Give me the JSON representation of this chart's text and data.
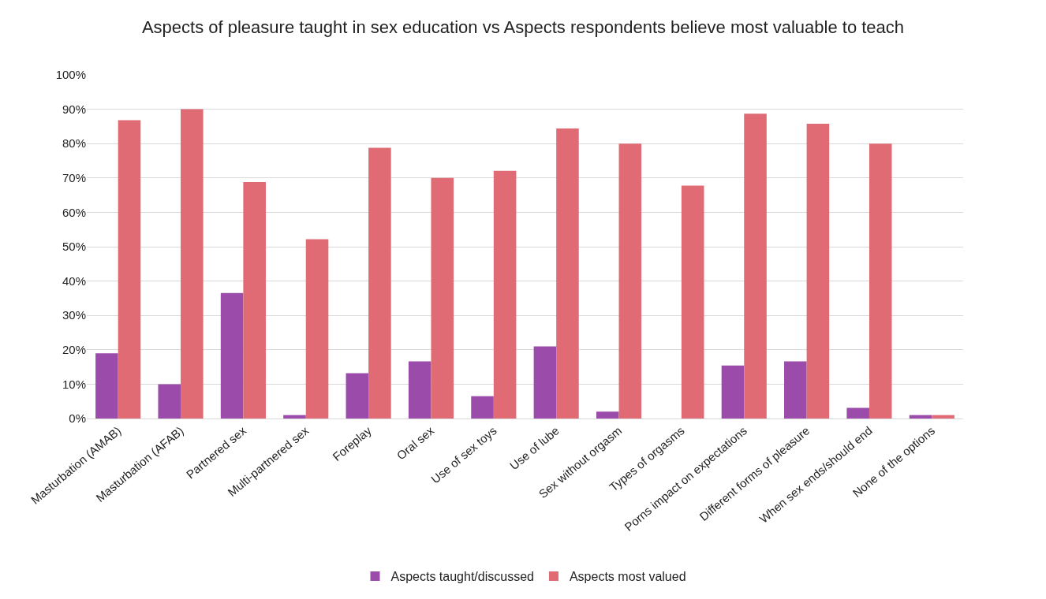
{
  "chart_data": {
    "type": "bar",
    "title": "Aspects of pleasure taught in sex education vs Aspects respondents believe most valuable to teach",
    "categories": [
      "Masturbation (AMAB)",
      "Masturbation (AFAB)",
      "Partnered sex",
      "Multi-partnered sex",
      "Foreplay",
      "Oral sex",
      "Use of sex toys",
      "Use of lube",
      "Sex without orgasm",
      "Types of orgasms",
      "Porns impact on expectations",
      "Different forms of pleasure",
      "When sex ends/should end",
      "None of the options"
    ],
    "series": [
      {
        "name": "Aspects taught/discussed",
        "color": "#9b4ba9",
        "values": [
          19,
          10,
          36.5,
          1,
          13.2,
          16.6,
          6.5,
          21,
          2,
          0,
          15.4,
          16.6,
          3.1,
          1
        ]
      },
      {
        "name": "Aspects most valued",
        "color": "#e06b74",
        "values": [
          86.8,
          90,
          68.8,
          52.2,
          78.8,
          70,
          72.1,
          84.4,
          80,
          67.8,
          88.7,
          85.8,
          80,
          1
        ]
      }
    ],
    "ylim": [
      0,
      100
    ],
    "yticks": [
      {
        "value": 0,
        "label": "0%"
      },
      {
        "value": 10,
        "label": "10%"
      },
      {
        "value": 20,
        "label": "20%"
      },
      {
        "value": 30,
        "label": "30%"
      },
      {
        "value": 40,
        "label": "40%"
      },
      {
        "value": 50,
        "label": "50%"
      },
      {
        "value": 60,
        "label": "60%"
      },
      {
        "value": 70,
        "label": "70%"
      },
      {
        "value": 80,
        "label": "80%"
      },
      {
        "value": 90,
        "label": "90%"
      },
      {
        "value": 100,
        "label": "100%"
      }
    ],
    "grid": "y",
    "legend": "bottom"
  }
}
